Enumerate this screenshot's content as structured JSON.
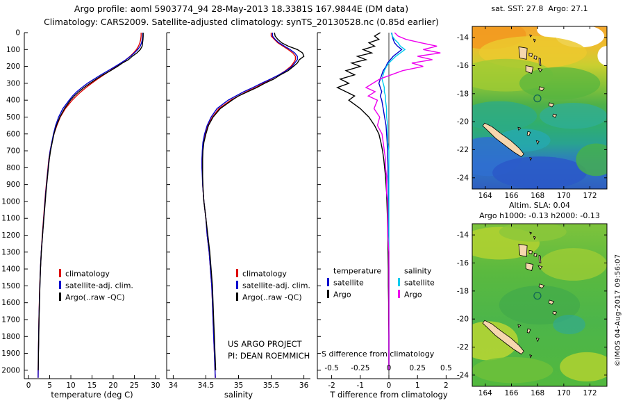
{
  "header": {
    "line1": "Argo profile: aoml 5903774_94 28-May-2013 18.3381S 167.9844E (DM data)",
    "line2": "Climatology: CARS2009. Satellite-adjusted climatology: synTS_20130528.nc (0.85d earlier)"
  },
  "watermark": "©IMOS 04-Aug-2017 09:56:07",
  "colors": {
    "climatology": "#dd0000",
    "satellite_adjusted": "#0000cc",
    "argo": "#000000",
    "satellite_salinity": "#00ccee",
    "argo_salinity": "#ee00ee",
    "land": "#f6d7ae",
    "marker": "#116655"
  },
  "chart_data": [
    {
      "id": "temperature-profile",
      "type": "line",
      "xlabel": "temperature (deg C)",
      "xlim": [
        -1,
        31
      ],
      "xticks": [
        0,
        5,
        10,
        15,
        20,
        25,
        30
      ],
      "ylim": [
        0,
        2050
      ],
      "yticks": [
        0,
        100,
        200,
        300,
        400,
        500,
        600,
        700,
        800,
        900,
        1000,
        1100,
        1200,
        1300,
        1400,
        1500,
        1600,
        1700,
        1800,
        1900,
        2000
      ],
      "legend": [
        {
          "label": "climatology",
          "color": "#dd0000"
        },
        {
          "label": "satellite-adj. clim.",
          "color": "#0000cc"
        },
        {
          "label": "Argo(..raw -QC)",
          "color": "#000000"
        }
      ],
      "depths": [
        0,
        20,
        40,
        60,
        80,
        100,
        120,
        140,
        160,
        180,
        200,
        225,
        250,
        275,
        300,
        325,
        350,
        375,
        400,
        450,
        500,
        550,
        600,
        650,
        700,
        750,
        800,
        850,
        900,
        950,
        1000,
        1100,
        1200,
        1300,
        1400,
        1500,
        1600,
        1700,
        1800,
        1900,
        2000,
        2045
      ],
      "series": [
        {
          "name": "climatology",
          "color": "#dd0000",
          "values": [
            26.6,
            26.6,
            26.5,
            26.3,
            26.0,
            25.5,
            24.8,
            24.0,
            23.0,
            22.0,
            20.8,
            19.3,
            17.8,
            16.3,
            14.9,
            13.6,
            12.4,
            11.3,
            10.3,
            8.7,
            7.5,
            6.7,
            6.0,
            5.5,
            5.1,
            4.8,
            4.6,
            4.4,
            4.2,
            4.0,
            3.85,
            3.55,
            3.25,
            3.0,
            2.8,
            2.65,
            2.55,
            2.45,
            2.4,
            2.32,
            2.28,
            2.26
          ]
        },
        {
          "name": "satellite-adj. clim.",
          "color": "#0000cc",
          "values": [
            27.0,
            27.0,
            26.9,
            26.7,
            26.4,
            25.8,
            25.0,
            24.1,
            23.0,
            21.8,
            20.5,
            18.8,
            17.1,
            15.5,
            13.9,
            12.6,
            11.4,
            10.4,
            9.6,
            8.1,
            7.1,
            6.4,
            5.9,
            5.5,
            5.1,
            4.85,
            4.65,
            4.45,
            4.25,
            4.05,
            3.9,
            3.6,
            3.3,
            3.0,
            2.8,
            2.68,
            2.56,
            2.46,
            2.4,
            2.33,
            2.29,
            2.27
          ]
        },
        {
          "name": "Argo(..raw -QC)",
          "color": "#000000",
          "values": [
            27.1,
            27.1,
            27.05,
            26.95,
            26.85,
            26.4,
            25.6,
            24.5,
            23.6,
            22.2,
            21.0,
            19.4,
            17.6,
            16.0,
            14.5,
            13.1,
            11.9,
            10.8,
            9.9,
            8.5,
            7.4,
            6.6,
            6.0,
            5.6,
            5.2,
            4.9,
            4.7,
            4.5,
            4.3,
            4.1,
            3.95,
            3.62,
            3.32,
            3.02,
            2.82,
            2.7,
            2.58,
            2.48,
            2.42,
            2.35,
            2.3,
            null
          ]
        }
      ]
    },
    {
      "id": "salinity-profile",
      "type": "line",
      "xlabel": "salinity",
      "xlim": [
        33.9,
        36.1
      ],
      "xticks": [
        34,
        34.5,
        35,
        35.5,
        36
      ],
      "ylim": [
        0,
        2050
      ],
      "yticks": [
        0,
        100,
        200,
        300,
        400,
        500,
        600,
        700,
        800,
        900,
        1000,
        1100,
        1200,
        1300,
        1400,
        1500,
        1600,
        1700,
        1800,
        1900,
        2000
      ],
      "legend": [
        {
          "label": "climatology",
          "color": "#dd0000"
        },
        {
          "label": "satellite-adj. clim.",
          "color": "#0000cc"
        },
        {
          "label": "Argo(..raw -QC)",
          "color": "#000000"
        }
      ],
      "annotations": [
        "US ARGO PROJECT",
        "PI: DEAN ROEMMICH"
      ],
      "depths": [
        0,
        20,
        40,
        60,
        80,
        100,
        120,
        140,
        160,
        180,
        200,
        225,
        250,
        275,
        300,
        325,
        350,
        375,
        400,
        450,
        500,
        550,
        600,
        650,
        700,
        750,
        800,
        850,
        900,
        950,
        1000,
        1100,
        1200,
        1300,
        1400,
        1500,
        1600,
        1700,
        1800,
        1900,
        2000,
        2045
      ],
      "series": [
        {
          "name": "climatology",
          "color": "#dd0000",
          "values": [
            35.5,
            35.5,
            35.55,
            35.6,
            35.68,
            35.76,
            35.83,
            35.87,
            35.87,
            35.84,
            35.8,
            35.72,
            35.62,
            35.5,
            35.38,
            35.26,
            35.12,
            35.0,
            34.88,
            34.7,
            34.6,
            34.53,
            34.49,
            34.46,
            34.45,
            34.44,
            34.44,
            34.45,
            34.45,
            34.46,
            34.47,
            34.5,
            34.52,
            34.55,
            34.57,
            34.59,
            34.6,
            34.61,
            34.62,
            34.63,
            34.64,
            34.645
          ]
        },
        {
          "name": "satellite-adj. clim.",
          "color": "#0000cc",
          "values": [
            35.52,
            35.52,
            35.56,
            35.62,
            35.7,
            35.79,
            35.86,
            35.9,
            35.9,
            35.86,
            35.82,
            35.73,
            35.62,
            35.49,
            35.35,
            35.22,
            35.08,
            34.96,
            34.84,
            34.67,
            34.58,
            34.52,
            34.48,
            34.455,
            34.445,
            34.44,
            34.44,
            34.445,
            34.45,
            34.46,
            34.47,
            34.5,
            34.52,
            34.55,
            34.57,
            34.59,
            34.6,
            34.61,
            34.62,
            34.63,
            34.64,
            34.645
          ]
        },
        {
          "name": "Argo(..raw -QC)",
          "color": "#000000",
          "values": [
            35.55,
            35.56,
            35.6,
            35.66,
            35.76,
            35.9,
            35.98,
            36.0,
            35.93,
            35.9,
            35.84,
            35.76,
            35.64,
            35.54,
            35.4,
            35.28,
            35.14,
            35.0,
            34.9,
            34.72,
            34.61,
            34.54,
            34.5,
            34.47,
            34.455,
            34.45,
            34.45,
            34.45,
            34.455,
            34.46,
            34.47,
            34.5,
            34.53,
            34.56,
            34.58,
            34.6,
            34.61,
            34.62,
            34.63,
            34.64,
            34.65,
            null
          ]
        }
      ]
    },
    {
      "id": "difference-profile",
      "type": "line",
      "xlabel": "T difference from climatology",
      "xlim": [
        -2.5,
        2.5
      ],
      "xticks": [
        -2,
        -1,
        0,
        1,
        2
      ],
      "ylim": [
        0,
        2050
      ],
      "yticks": [
        0,
        100,
        200,
        300,
        400,
        500,
        600,
        700,
        800,
        900,
        1000,
        1100,
        1200,
        1300,
        1400,
        1500,
        1600,
        1700,
        1800,
        1900,
        2000
      ],
      "zero_line": true,
      "s_axis": {
        "label": "S difference from climatology",
        "ticks": [
          -0.5,
          -0.25,
          0,
          0.25,
          0.5
        ],
        "scale": 4
      },
      "legend_groups": [
        {
          "header": "temperature",
          "items": [
            {
              "label": "satellite",
              "color": "#0000cc"
            },
            {
              "label": "Argo",
              "color": "#000000"
            }
          ]
        },
        {
          "header": "salinity",
          "items": [
            {
              "label": "satellite",
              "color": "#00ccee"
            },
            {
              "label": "Argo",
              "color": "#ee00ee"
            }
          ]
        }
      ],
      "depths": [
        0,
        20,
        40,
        60,
        80,
        100,
        120,
        140,
        160,
        180,
        200,
        225,
        250,
        275,
        300,
        325,
        350,
        375,
        400,
        450,
        500,
        550,
        600,
        650,
        700,
        750,
        800,
        850,
        900,
        950,
        1000,
        1100,
        1200,
        1300,
        1400,
        1500,
        1600,
        1700,
        1800,
        1900,
        2000
      ],
      "series": [
        {
          "name": "T diff satellite",
          "color": "#0000cc",
          "scale": 1,
          "values": [
            0.1,
            0.12,
            0.15,
            0.2,
            0.3,
            0.45,
            0.3,
            0.15,
            0.05,
            -0.05,
            -0.1,
            -0.2,
            -0.25,
            -0.3,
            -0.35,
            -0.3,
            -0.25,
            -0.3,
            -0.25,
            -0.2,
            -0.15,
            -0.1,
            -0.08,
            -0.06,
            -0.05,
            -0.04,
            -0.03,
            -0.03,
            -0.02,
            -0.02,
            -0.02,
            -0.01,
            -0.01,
            -0.01,
            0,
            0,
            0,
            0,
            0,
            0,
            0
          ]
        },
        {
          "name": "S diff satellite",
          "color": "#00ccee",
          "scale": 4,
          "values": [
            0.02,
            0.03,
            0.05,
            0.08,
            0.1,
            0.14,
            0.1,
            0.06,
            0.03,
            0,
            -0.02,
            -0.04,
            -0.05,
            -0.06,
            -0.05,
            -0.04,
            -0.04,
            -0.03,
            -0.03,
            -0.02,
            -0.02,
            -0.01,
            -0.01,
            -0.01,
            0,
            0,
            0,
            0,
            0,
            0,
            0,
            0,
            0,
            0,
            0,
            0,
            0,
            0,
            0,
            0,
            0
          ]
        },
        {
          "name": "T diff Argo",
          "color": "#000000",
          "scale": 1,
          "values": [
            -0.3,
            -0.5,
            -0.35,
            -0.7,
            -0.5,
            -0.9,
            -0.6,
            -1.1,
            -0.8,
            -1.3,
            -1.0,
            -1.5,
            -1.2,
            -1.7,
            -1.4,
            -1.8,
            -1.5,
            -1.2,
            -1.4,
            -1.0,
            -0.7,
            -0.5,
            -0.35,
            -0.28,
            -0.22,
            -0.18,
            -0.15,
            -0.12,
            -0.1,
            -0.08,
            -0.07,
            -0.05,
            -0.04,
            -0.03,
            -0.02,
            -0.02,
            -0.01,
            -0.01,
            0,
            0,
            0
          ]
        },
        {
          "name": "S diff Argo",
          "color": "#ee00ee",
          "scale": 4,
          "values": [
            0.05,
            0.08,
            0.15,
            0.28,
            0.42,
            0.3,
            0.45,
            0.25,
            0.38,
            0.2,
            0.3,
            0.12,
            0.02,
            -0.08,
            -0.14,
            -0.2,
            -0.12,
            -0.18,
            -0.1,
            -0.13,
            -0.08,
            -0.1,
            -0.06,
            -0.05,
            -0.04,
            -0.03,
            -0.03,
            -0.02,
            -0.02,
            -0.02,
            -0.01,
            -0.01,
            -0.01,
            0,
            0,
            0,
            0,
            0,
            0,
            0,
            0
          ]
        }
      ]
    },
    {
      "id": "sst-map",
      "type": "heatmap",
      "title": "sat. SST: 27.8  Argo: 27.1",
      "lon_range": [
        163,
        173.3
      ],
      "lat_range": [
        -24.8,
        -13.2
      ],
      "xticks": [
        164,
        166,
        168,
        170,
        172
      ],
      "yticks": [
        -14,
        -16,
        -18,
        -20,
        -22,
        -24
      ],
      "marker": {
        "lon": 167.9844,
        "lat": -18.3381
      }
    },
    {
      "id": "sla-map",
      "type": "heatmap",
      "title_line1": "Altim. SLA: 0.04",
      "title_line2": "Argo h1000: -0.13 h2000: -0.13",
      "lon_range": [
        163,
        173.3
      ],
      "lat_range": [
        -24.8,
        -13.2
      ],
      "xticks": [
        164,
        166,
        168,
        170,
        172
      ],
      "yticks": [
        -14,
        -16,
        -18,
        -20,
        -22,
        -24
      ],
      "marker": {
        "lon": 167.9844,
        "lat": -18.3381
      }
    }
  ]
}
